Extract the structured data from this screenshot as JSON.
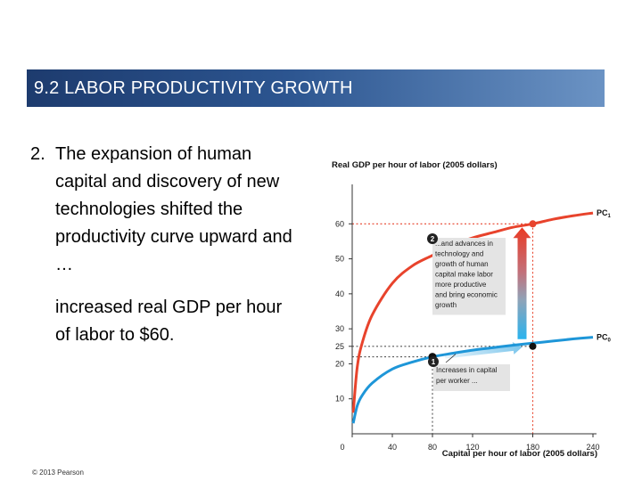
{
  "slide": {
    "title": "9.2  LABOR PRODUCTIVITY GROWTH",
    "point_number": "2.",
    "paragraph1": "The expansion of human capital and discovery of new technologies shifted the productivity curve upward and …",
    "paragraph2": "increased real GDP per hour of labor to $60.",
    "copyright": "© 2013 Pearson"
  },
  "chart_data": {
    "type": "line",
    "ylabel": "Real GDP per hour of labor (2005 dollars)",
    "xlabel": "Capital per hour of labor (2005 dollars)",
    "xlim": [
      0,
      240
    ],
    "ylim": [
      0,
      70
    ],
    "x_ticks": [
      0,
      40,
      80,
      120,
      180,
      240
    ],
    "y_ticks": [
      10,
      20,
      25,
      30,
      40,
      50,
      60
    ],
    "grid": false,
    "series": [
      {
        "name": "PC1",
        "color": "#e8432c",
        "x": [
          1,
          5,
          10,
          20,
          40,
          60,
          80,
          100,
          120,
          140,
          160,
          180,
          200,
          220,
          240
        ],
        "y": [
          6,
          19,
          26,
          34,
          43,
          48,
          51,
          54,
          56,
          57.5,
          59,
          60,
          61.3,
          62.3,
          63.1
        ]
      },
      {
        "name": "PC0",
        "color": "#1e96d8",
        "x": [
          1,
          5,
          10,
          20,
          40,
          60,
          80,
          100,
          120,
          140,
          160,
          180,
          200,
          220,
          240
        ],
        "y": [
          3,
          8,
          11,
          14.5,
          18.5,
          20.5,
          22,
          23,
          23.9,
          24.6,
          25.3,
          25.9,
          26.5,
          27.1,
          27.6
        ]
      }
    ],
    "points": [
      {
        "label": "1",
        "x": 80,
        "y": 22
      },
      {
        "label": "",
        "x": 180,
        "y": 25
      },
      {
        "label": "",
        "x": 180,
        "y": 60
      }
    ],
    "annotations": [
      {
        "number": "1",
        "text": [
          "Increases in capital",
          "per worker ..."
        ]
      },
      {
        "number": "2",
        "text": [
          "...and advances in",
          "technology and",
          "growth of human",
          "capital make labor",
          "more productive",
          "and bring economic",
          "growth"
        ]
      }
    ],
    "curve_labels": {
      "upper": "PC",
      "upper_sub": "1",
      "lower": "PC",
      "lower_sub": "0"
    }
  }
}
